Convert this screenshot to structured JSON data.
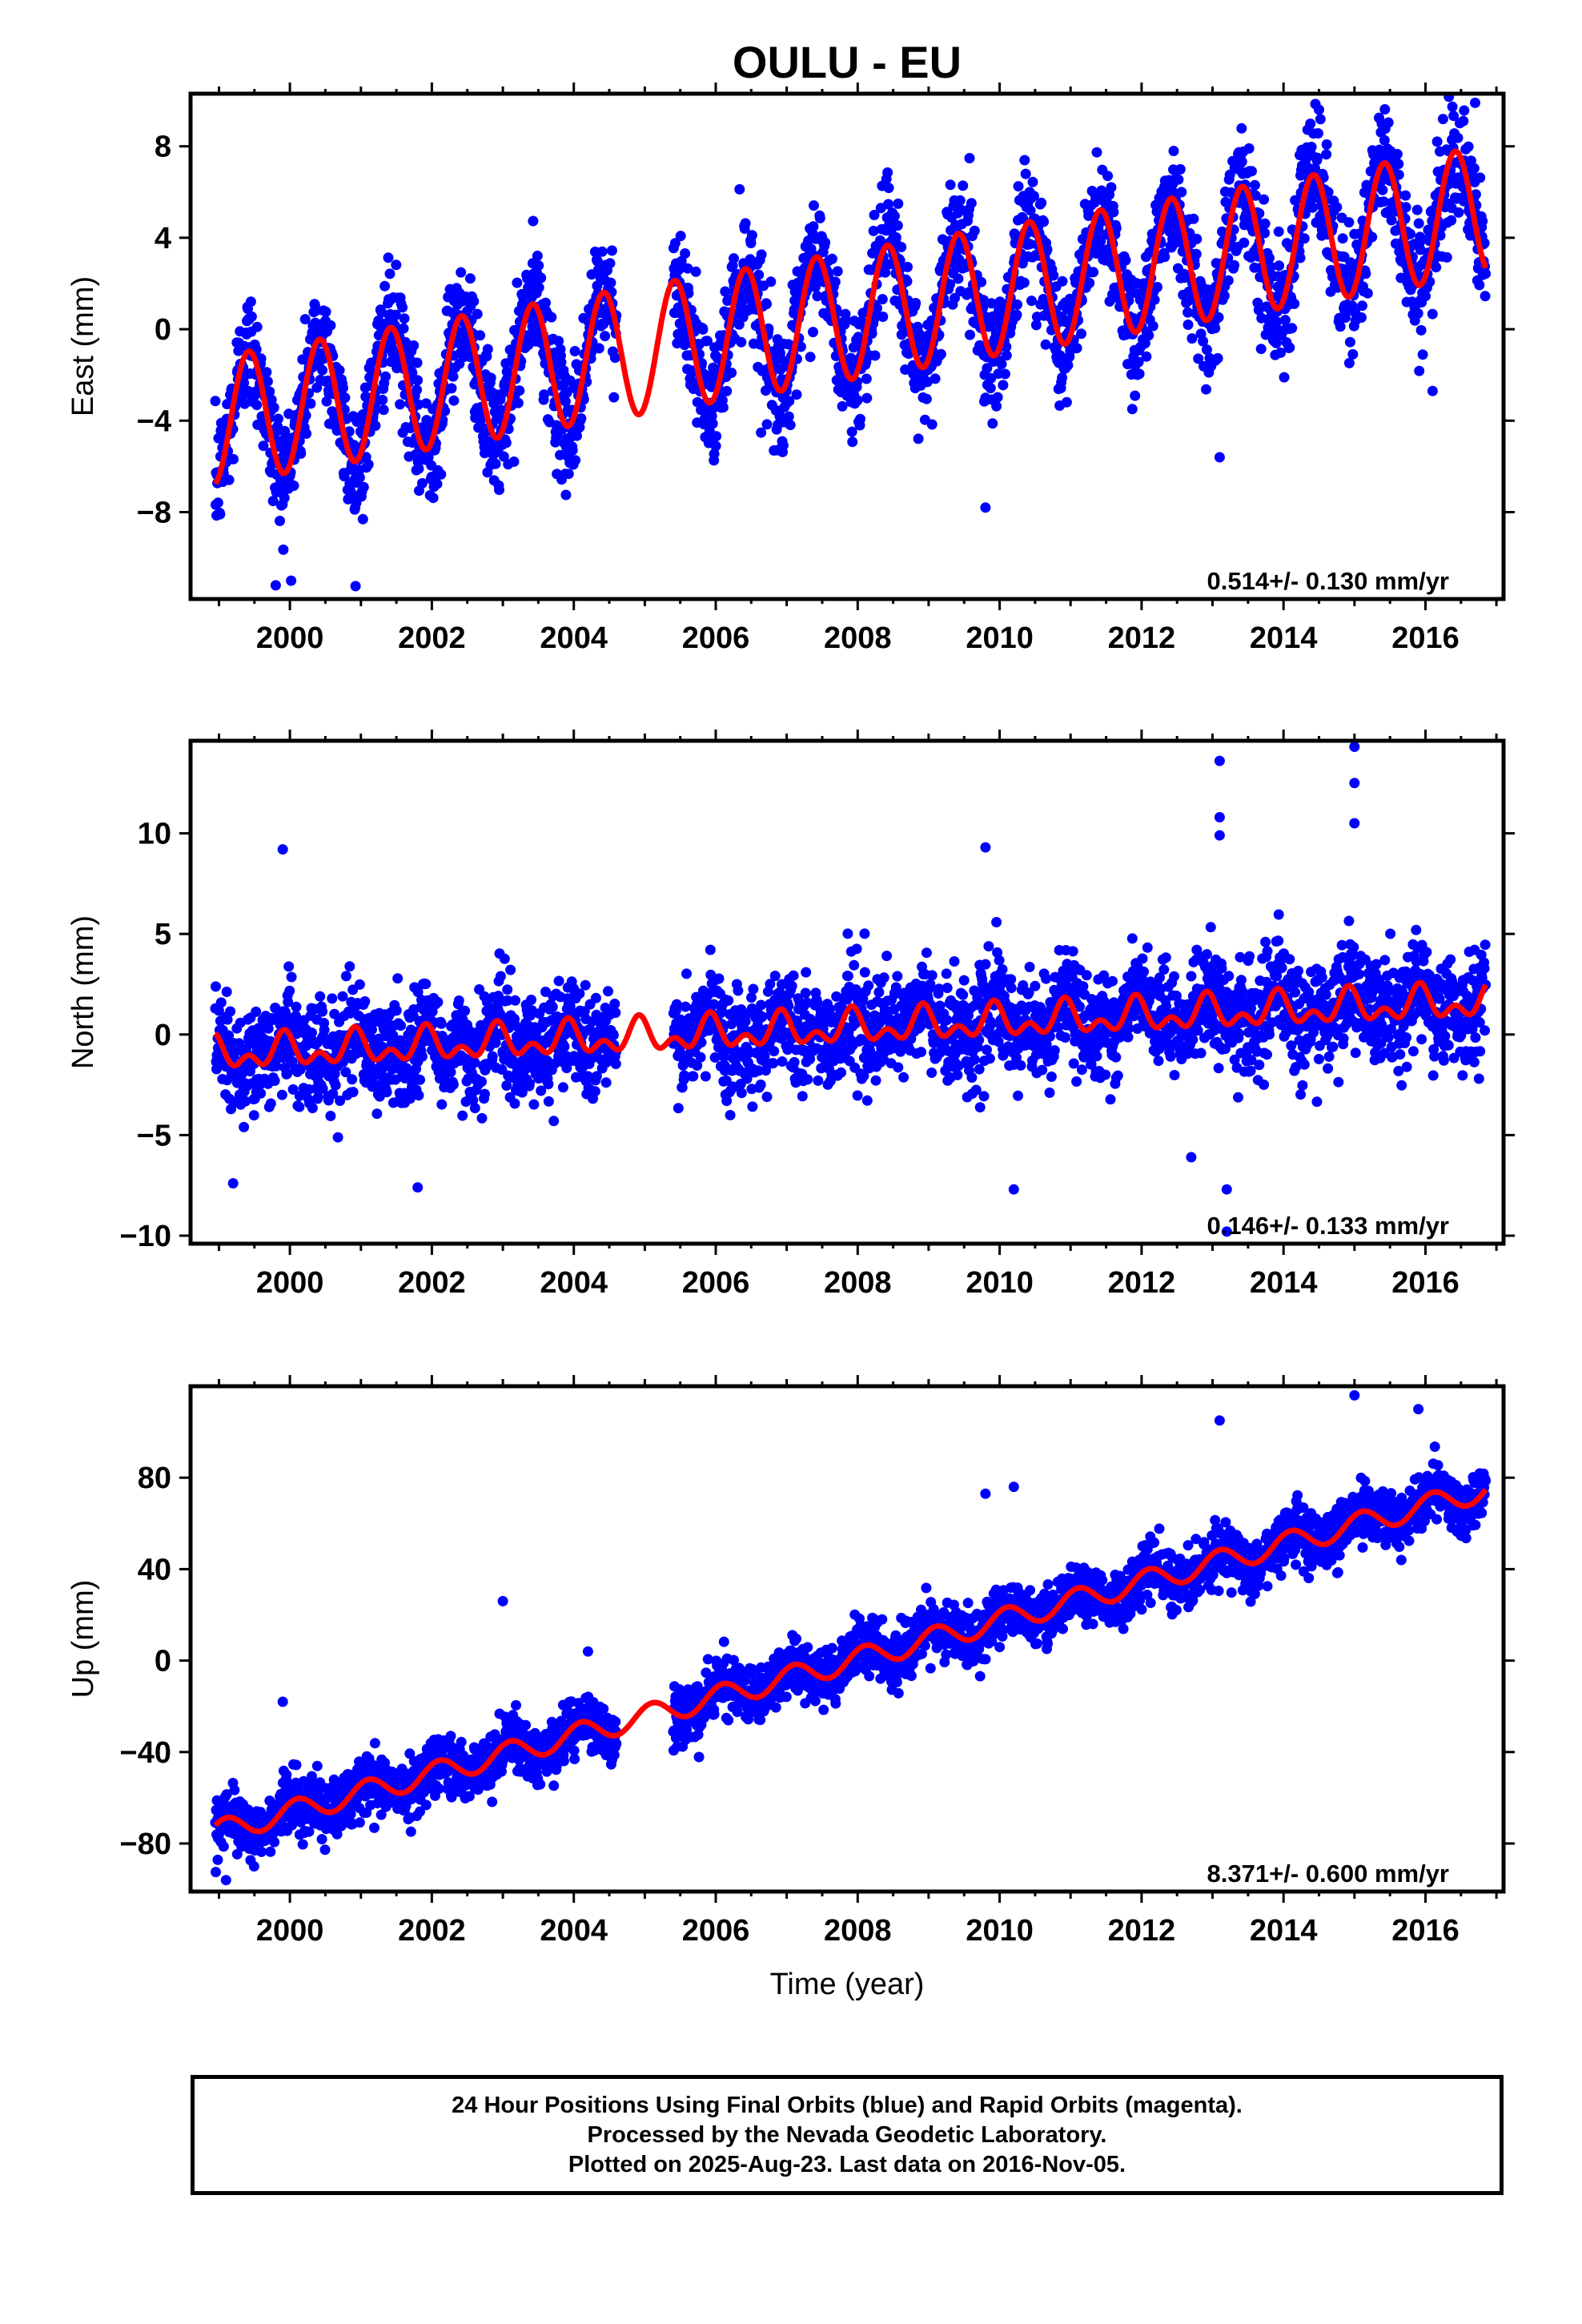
{
  "title": "OULU - EU",
  "colors": {
    "points": "#0000ff",
    "fit": "#ff0000",
    "frame": "#000000",
    "background": "#ffffff"
  },
  "chart_data": [
    {
      "type": "scatter",
      "component": "East",
      "ylabel": "East (mm)",
      "xlabel": "",
      "xlim": [
        1998.6,
        2017.1
      ],
      "ylim": [
        -11.8,
        10.3
      ],
      "xticks": [
        2000,
        2002,
        2004,
        2006,
        2008,
        2010,
        2012,
        2014,
        2016
      ],
      "xtick_labels": [
        "2000",
        "2002",
        "2004",
        "2006",
        "2008",
        "2010",
        "2012",
        "2014",
        "2016"
      ],
      "yticks": [
        8,
        4,
        0,
        -4,
        -8
      ],
      "ytick_labels": [
        "8",
        "4",
        "0",
        "−4",
        "−8"
      ],
      "rate_label": "0.514+/- 0.130 mm/yr",
      "data_range": [
        1998.95,
        2016.85
      ],
      "gap": [
        2004.6,
        2005.4
      ],
      "fit_model": {
        "t0": 1998.95,
        "y0": -4.0,
        "slope": 0.514,
        "annual_amp": 2.8,
        "annual_phase_year": 0.42,
        "semiannual_amp": 0.0
      },
      "scatter_sigma": 1.3,
      "outliers": [
        {
          "x": 1999.8,
          "y": -11.2
        },
        {
          "x": 2009.8,
          "y": -7.8
        },
        {
          "x": 2013.1,
          "y": -5.6
        },
        {
          "x": 2016.1,
          "y": -2.7
        },
        {
          "x": 2016.7,
          "y": 9.9
        },
        {
          "x": 2014.5,
          "y": 9.6
        }
      ],
      "grid": false,
      "legend": "none"
    },
    {
      "type": "scatter",
      "component": "North",
      "ylabel": "North (mm)",
      "xlabel": "",
      "xlim": [
        1998.6,
        2017.1
      ],
      "ylim": [
        -10.4,
        14.6
      ],
      "xticks": [
        2000,
        2002,
        2004,
        2006,
        2008,
        2010,
        2012,
        2014,
        2016
      ],
      "xtick_labels": [
        "2000",
        "2002",
        "2004",
        "2006",
        "2008",
        "2010",
        "2012",
        "2014",
        "2016"
      ],
      "yticks": [
        10,
        5,
        0,
        -5,
        -10
      ],
      "ytick_labels": [
        "10",
        "5",
        "0",
        "−5",
        "−10"
      ],
      "rate_label": "0.146+/- 0.133 mm/yr",
      "data_range": [
        1998.95,
        2016.85
      ],
      "gap": [
        2004.6,
        2005.4
      ],
      "fit_model": {
        "t0": 1998.95,
        "y0": -1.0,
        "slope": 0.146,
        "annual_amp": 0.6,
        "annual_phase_year": 0.92,
        "semiannual_amp": 0.5
      },
      "scatter_sigma": 1.3,
      "outliers": [
        {
          "x": 1999.9,
          "y": 9.2
        },
        {
          "x": 2009.8,
          "y": 9.3
        },
        {
          "x": 2013.1,
          "y": 13.6
        },
        {
          "x": 2013.1,
          "y": 10.8
        },
        {
          "x": 2013.1,
          "y": 9.9
        },
        {
          "x": 2015.0,
          "y": 14.3
        },
        {
          "x": 2015.0,
          "y": 12.5
        },
        {
          "x": 2015.0,
          "y": 10.5
        },
        {
          "x": 2001.8,
          "y": -7.6
        },
        {
          "x": 2010.2,
          "y": -7.7
        },
        {
          "x": 2013.2,
          "y": -7.7
        },
        {
          "x": 2013.2,
          "y": -9.8
        },
        {
          "x": 2012.7,
          "y": -6.1
        },
        {
          "x": 1999.2,
          "y": -7.4
        }
      ],
      "grid": false,
      "legend": "none"
    },
    {
      "type": "scatter",
      "component": "Up",
      "ylabel": "Up (mm)",
      "xlabel": "Time (year)",
      "xlim": [
        1998.6,
        2017.1
      ],
      "ylim": [
        -101,
        120
      ],
      "xticks": [
        2000,
        2002,
        2004,
        2006,
        2008,
        2010,
        2012,
        2014,
        2016
      ],
      "xtick_labels": [
        "2000",
        "2002",
        "2004",
        "2006",
        "2008",
        "2010",
        "2012",
        "2014",
        "2016"
      ],
      "yticks": [
        80,
        40,
        0,
        -40,
        -80
      ],
      "ytick_labels": [
        "80",
        "40",
        "0",
        "−40",
        "−80"
      ],
      "rate_label": "8.371+/- 0.600 mm/yr",
      "data_range": [
        1998.95,
        2016.85
      ],
      "gap": [
        2004.6,
        2005.4
      ],
      "fit_model": {
        "t0": 1998.95,
        "y0": -75.0,
        "slope": 8.371,
        "annual_amp": 5.0,
        "annual_phase_year": 0.1,
        "semiannual_amp": 0.0
      },
      "scatter_sigma": 6.0,
      "outliers": [
        {
          "x": 1999.9,
          "y": -18
        },
        {
          "x": 2003.0,
          "y": 26
        },
        {
          "x": 2004.2,
          "y": 4
        },
        {
          "x": 2009.8,
          "y": 73
        },
        {
          "x": 2010.2,
          "y": 76
        },
        {
          "x": 2013.1,
          "y": 105
        },
        {
          "x": 2015.0,
          "y": 116
        },
        {
          "x": 2015.9,
          "y": 110
        },
        {
          "x": 1999.1,
          "y": -96
        }
      ],
      "grid": false,
      "legend": "none"
    }
  ],
  "footer": {
    "line1": "24 Hour Positions Using Final Orbits (blue) and Rapid Orbits (magenta).",
    "line2": "Processed by the Nevada Geodetic Laboratory.",
    "line3": "Plotted on 2025-Aug-23. Last data on 2016-Nov-05."
  }
}
